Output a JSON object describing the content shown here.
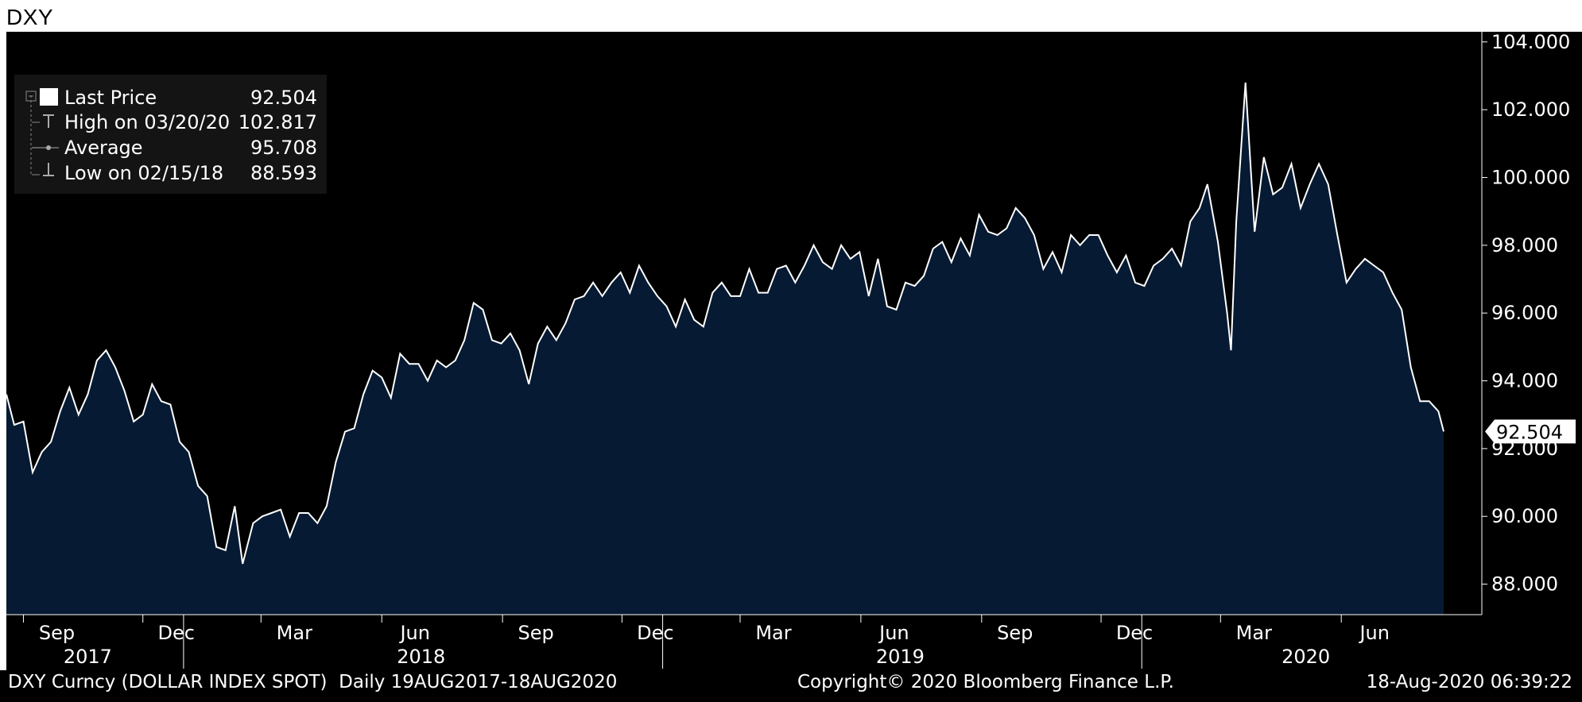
{
  "title": "DXY",
  "colors": {
    "background": "#000000",
    "area_fill": "#061a33",
    "line": "#ffffff",
    "text": "#ffffff",
    "legend_bg": "#141414"
  },
  "legend": {
    "items": [
      {
        "icon": "white-square-icon",
        "label": "Last Price",
        "value": "92.504"
      },
      {
        "icon": "high-marker-icon",
        "label": "High on 03/20/20",
        "value": "102.817"
      },
      {
        "icon": "average-marker-icon",
        "label": "Average",
        "value": "95.708"
      },
      {
        "icon": "low-marker-icon",
        "label": "Low on 02/15/18",
        "value": "88.593"
      }
    ]
  },
  "footer": {
    "left": "DXY Curncy (DOLLAR INDEX SPOT)  Daily 19AUG2017-18AUG2020",
    "center": "Copyright© 2020 Bloomberg Finance L.P.",
    "right": "18-Aug-2020 06:39:22"
  },
  "chart_data": {
    "type": "area",
    "x_range": [
      "2017-08-19",
      "2020-08-18"
    ],
    "ylim": [
      87.1,
      104.3
    ],
    "y_ticks": [
      "88.000",
      "90.000",
      "92.000",
      "94.000",
      "96.000",
      "98.000",
      "100.000",
      "102.000",
      "104.000"
    ],
    "y_tick_values": [
      88,
      90,
      92,
      94,
      96,
      98,
      100,
      102,
      104
    ],
    "last_price_label": "92.504",
    "last_price_value": 92.504,
    "month_ticks": [
      {
        "label": "Sep",
        "date": "2017-09-01"
      },
      {
        "label": "Dec",
        "date": "2017-12-01"
      },
      {
        "label": "Mar",
        "date": "2018-03-01"
      },
      {
        "label": "Jun",
        "date": "2018-06-01"
      },
      {
        "label": "Sep",
        "date": "2018-09-01"
      },
      {
        "label": "Dec",
        "date": "2018-12-01"
      },
      {
        "label": "Mar",
        "date": "2019-03-01"
      },
      {
        "label": "Jun",
        "date": "2019-06-01"
      },
      {
        "label": "Sep",
        "date": "2019-09-01"
      },
      {
        "label": "Dec",
        "date": "2019-12-01"
      },
      {
        "label": "Mar",
        "date": "2020-03-01"
      },
      {
        "label": "Jun",
        "date": "2020-06-01"
      }
    ],
    "year_labels": [
      {
        "label": "2017",
        "date": "2017-10-20"
      },
      {
        "label": "2018",
        "date": "2018-07-01"
      },
      {
        "label": "2019",
        "date": "2019-07-01"
      },
      {
        "label": "2020",
        "date": "2020-05-05"
      }
    ],
    "year_dividers": [
      "2018-01-01",
      "2019-01-01",
      "2020-01-01"
    ],
    "series": [
      {
        "points": [
          [
            "2017-08-19",
            93.6
          ],
          [
            "2017-08-25",
            92.7
          ],
          [
            "2017-09-01",
            92.8
          ],
          [
            "2017-09-08",
            91.3
          ],
          [
            "2017-09-15",
            91.9
          ],
          [
            "2017-09-22",
            92.2
          ],
          [
            "2017-09-29",
            93.1
          ],
          [
            "2017-10-06",
            93.8
          ],
          [
            "2017-10-13",
            93.0
          ],
          [
            "2017-10-20",
            93.6
          ],
          [
            "2017-10-27",
            94.6
          ],
          [
            "2017-11-03",
            94.9
          ],
          [
            "2017-11-10",
            94.4
          ],
          [
            "2017-11-17",
            93.7
          ],
          [
            "2017-11-24",
            92.8
          ],
          [
            "2017-12-01",
            93.0
          ],
          [
            "2017-12-08",
            93.9
          ],
          [
            "2017-12-15",
            93.4
          ],
          [
            "2017-12-22",
            93.3
          ],
          [
            "2017-12-29",
            92.2
          ],
          [
            "2018-01-05",
            91.9
          ],
          [
            "2018-01-12",
            90.9
          ],
          [
            "2018-01-19",
            90.6
          ],
          [
            "2018-01-26",
            89.1
          ],
          [
            "2018-02-02",
            89.0
          ],
          [
            "2018-02-09",
            90.3
          ],
          [
            "2018-02-15",
            88.6
          ],
          [
            "2018-02-23",
            89.8
          ],
          [
            "2018-03-02",
            90.0
          ],
          [
            "2018-03-09",
            90.1
          ],
          [
            "2018-03-16",
            90.2
          ],
          [
            "2018-03-23",
            89.4
          ],
          [
            "2018-03-30",
            90.1
          ],
          [
            "2018-04-06",
            90.1
          ],
          [
            "2018-04-13",
            89.8
          ],
          [
            "2018-04-20",
            90.3
          ],
          [
            "2018-04-27",
            91.6
          ],
          [
            "2018-05-04",
            92.5
          ],
          [
            "2018-05-11",
            92.6
          ],
          [
            "2018-05-18",
            93.6
          ],
          [
            "2018-05-25",
            94.3
          ],
          [
            "2018-06-01",
            94.1
          ],
          [
            "2018-06-08",
            93.5
          ],
          [
            "2018-06-15",
            94.8
          ],
          [
            "2018-06-22",
            94.5
          ],
          [
            "2018-06-29",
            94.5
          ],
          [
            "2018-07-06",
            94.0
          ],
          [
            "2018-07-13",
            94.6
          ],
          [
            "2018-07-20",
            94.4
          ],
          [
            "2018-07-27",
            94.6
          ],
          [
            "2018-08-03",
            95.2
          ],
          [
            "2018-08-10",
            96.3
          ],
          [
            "2018-08-17",
            96.1
          ],
          [
            "2018-08-24",
            95.2
          ],
          [
            "2018-08-31",
            95.1
          ],
          [
            "2018-09-07",
            95.4
          ],
          [
            "2018-09-14",
            94.9
          ],
          [
            "2018-09-21",
            93.9
          ],
          [
            "2018-09-28",
            95.1
          ],
          [
            "2018-10-05",
            95.6
          ],
          [
            "2018-10-12",
            95.2
          ],
          [
            "2018-10-19",
            95.7
          ],
          [
            "2018-10-26",
            96.4
          ],
          [
            "2018-11-02",
            96.5
          ],
          [
            "2018-11-09",
            96.9
          ],
          [
            "2018-11-16",
            96.5
          ],
          [
            "2018-11-23",
            96.9
          ],
          [
            "2018-11-30",
            97.2
          ],
          [
            "2018-12-07",
            96.6
          ],
          [
            "2018-12-14",
            97.4
          ],
          [
            "2018-12-21",
            96.9
          ],
          [
            "2018-12-28",
            96.5
          ],
          [
            "2019-01-04",
            96.2
          ],
          [
            "2019-01-11",
            95.6
          ],
          [
            "2019-01-18",
            96.4
          ],
          [
            "2019-01-25",
            95.8
          ],
          [
            "2019-02-01",
            95.6
          ],
          [
            "2019-02-08",
            96.6
          ],
          [
            "2019-02-15",
            96.9
          ],
          [
            "2019-02-22",
            96.5
          ],
          [
            "2019-03-01",
            96.5
          ],
          [
            "2019-03-08",
            97.3
          ],
          [
            "2019-03-15",
            96.6
          ],
          [
            "2019-03-22",
            96.6
          ],
          [
            "2019-03-29",
            97.3
          ],
          [
            "2019-04-05",
            97.4
          ],
          [
            "2019-04-12",
            96.9
          ],
          [
            "2019-04-19",
            97.4
          ],
          [
            "2019-04-26",
            98.0
          ],
          [
            "2019-05-03",
            97.5
          ],
          [
            "2019-05-10",
            97.3
          ],
          [
            "2019-05-17",
            98.0
          ],
          [
            "2019-05-24",
            97.6
          ],
          [
            "2019-05-31",
            97.8
          ],
          [
            "2019-06-07",
            96.5
          ],
          [
            "2019-06-14",
            97.6
          ],
          [
            "2019-06-21",
            96.2
          ],
          [
            "2019-06-28",
            96.1
          ],
          [
            "2019-07-05",
            96.9
          ],
          [
            "2019-07-12",
            96.8
          ],
          [
            "2019-07-19",
            97.1
          ],
          [
            "2019-07-26",
            97.9
          ],
          [
            "2019-08-02",
            98.1
          ],
          [
            "2019-08-09",
            97.5
          ],
          [
            "2019-08-16",
            98.2
          ],
          [
            "2019-08-23",
            97.7
          ],
          [
            "2019-08-30",
            98.9
          ],
          [
            "2019-09-06",
            98.4
          ],
          [
            "2019-09-13",
            98.3
          ],
          [
            "2019-09-20",
            98.5
          ],
          [
            "2019-09-27",
            99.1
          ],
          [
            "2019-10-04",
            98.8
          ],
          [
            "2019-10-11",
            98.3
          ],
          [
            "2019-10-18",
            97.3
          ],
          [
            "2019-10-25",
            97.8
          ],
          [
            "2019-11-01",
            97.2
          ],
          [
            "2019-11-08",
            98.3
          ],
          [
            "2019-11-15",
            98.0
          ],
          [
            "2019-11-22",
            98.3
          ],
          [
            "2019-11-29",
            98.3
          ],
          [
            "2019-12-06",
            97.7
          ],
          [
            "2019-12-13",
            97.2
          ],
          [
            "2019-12-20",
            97.7
          ],
          [
            "2019-12-27",
            96.9
          ],
          [
            "2020-01-03",
            96.8
          ],
          [
            "2020-01-10",
            97.4
          ],
          [
            "2020-01-17",
            97.6
          ],
          [
            "2020-01-24",
            97.9
          ],
          [
            "2020-01-31",
            97.4
          ],
          [
            "2020-02-07",
            98.7
          ],
          [
            "2020-02-14",
            99.1
          ],
          [
            "2020-02-20",
            99.8
          ],
          [
            "2020-02-28",
            98.1
          ],
          [
            "2020-03-06",
            96.0
          ],
          [
            "2020-03-09",
            94.9
          ],
          [
            "2020-03-13",
            98.7
          ],
          [
            "2020-03-20",
            102.8
          ],
          [
            "2020-03-27",
            98.4
          ],
          [
            "2020-04-03",
            100.6
          ],
          [
            "2020-04-10",
            99.5
          ],
          [
            "2020-04-17",
            99.7
          ],
          [
            "2020-04-24",
            100.4
          ],
          [
            "2020-05-01",
            99.1
          ],
          [
            "2020-05-08",
            99.8
          ],
          [
            "2020-05-15",
            100.4
          ],
          [
            "2020-05-22",
            99.8
          ],
          [
            "2020-05-29",
            98.3
          ],
          [
            "2020-06-05",
            96.9
          ],
          [
            "2020-06-12",
            97.3
          ],
          [
            "2020-06-19",
            97.6
          ],
          [
            "2020-06-26",
            97.4
          ],
          [
            "2020-07-03",
            97.2
          ],
          [
            "2020-07-10",
            96.6
          ],
          [
            "2020-07-17",
            96.1
          ],
          [
            "2020-07-24",
            94.4
          ],
          [
            "2020-07-31",
            93.4
          ],
          [
            "2020-08-07",
            93.4
          ],
          [
            "2020-08-14",
            93.1
          ],
          [
            "2020-08-18",
            92.504
          ]
        ]
      }
    ]
  }
}
